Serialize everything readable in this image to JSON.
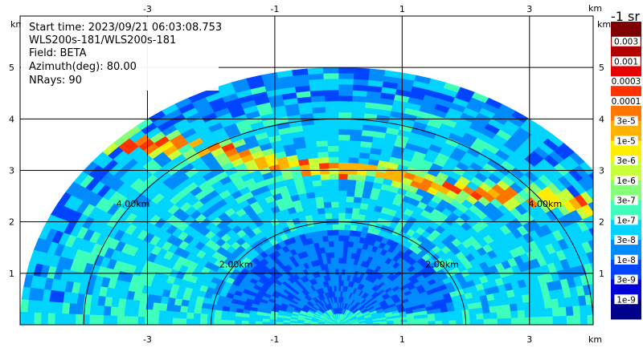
{
  "chart_data": {
    "type": "heatmap",
    "projection": "RHI sector (range-height)",
    "info": {
      "start_time": "Start time: 2023/09/21 06:03:08.753",
      "instrument": "WLS200s-181/WLS200s-181",
      "field": "Field: BETA",
      "azimuth": "Azimuth(deg): 80.00",
      "nrays": "NRays: 90"
    },
    "x_ticks": [
      "-3",
      "-1",
      "1",
      "3"
    ],
    "x_tick_values": [
      -3,
      -1,
      1,
      3
    ],
    "y_ticks": [
      "1",
      "2",
      "3",
      "4",
      "5"
    ],
    "y_tick_values": [
      1,
      2,
      3,
      4,
      5
    ],
    "x_unit": "km",
    "y_unit": "km",
    "xlim": [
      -5.0,
      4.0
    ],
    "ylim": [
      0,
      6.0
    ],
    "range_rings": [
      {
        "radius_km": 2,
        "label": "2.00km"
      },
      {
        "radius_km": 4,
        "label": "4.00km"
      }
    ],
    "max_range_km": 5.0,
    "colorbar": {
      "title": "-1 sr",
      "labels": [
        "0.003",
        "0.001",
        "0.0003",
        "0.0001",
        "3e-5",
        "1e-5",
        "3e-6",
        "1e-6",
        "3e-7",
        "1e-7",
        "3e-8",
        "1e-8",
        "3e-9",
        "1e-9"
      ],
      "colors": [
        "#7f0000",
        "#b20000",
        "#e60000",
        "#ff3300",
        "#ff7700",
        "#ffb300",
        "#ffee00",
        "#c8ff38",
        "#86ff78",
        "#3dffbb",
        "#00d4ff",
        "#008cff",
        "#0044ff",
        "#0000d8",
        "#00008a"
      ]
    },
    "cloud_layer": {
      "height_km": 3.0,
      "note": "high backscatter band"
    }
  }
}
